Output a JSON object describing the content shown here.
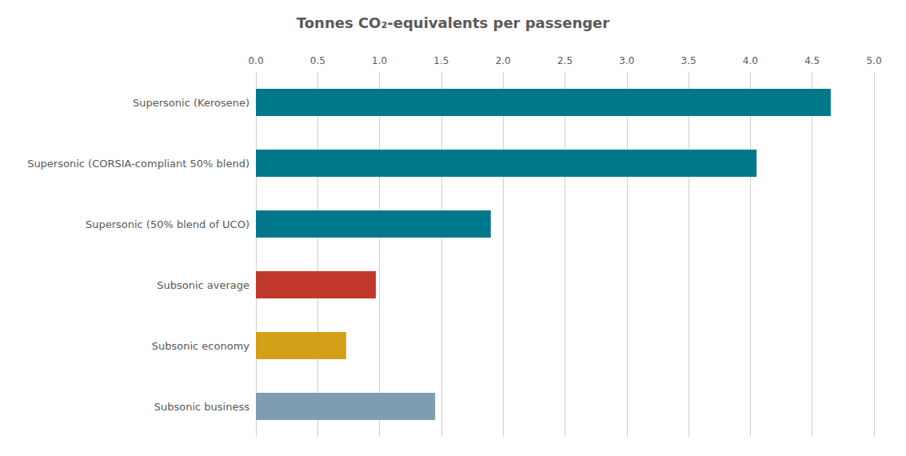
{
  "chart_data": {
    "type": "bar",
    "orientation": "horizontal",
    "title": "Tonnes CO₂-equivalents per passenger",
    "categories": [
      "Supersonic (Kerosene)",
      "Supersonic (CORSIA-compliant 50% blend)",
      "Supersonic (50% blend of UCO)",
      "Subsonic average",
      "Subsonic economy",
      "Subsonic business"
    ],
    "values": [
      4.65,
      4.05,
      1.9,
      0.97,
      0.73,
      1.45
    ],
    "colors": [
      "#00788a",
      "#00788a",
      "#00788a",
      "#c0392b",
      "#d4a017",
      "#7f9db0"
    ],
    "xlim": [
      0,
      5.0
    ],
    "xticks": [
      {
        "value": 0,
        "label": "0.0"
      },
      0.5,
      {
        "value": 1,
        "label": "1.0"
      },
      1.5,
      {
        "value": 2,
        "label": "2.0"
      },
      2.5,
      {
        "value": 3,
        "label": "3.0"
      },
      3.5,
      {
        "value": 4,
        "label": "4.0"
      },
      4.5,
      {
        "value": 5,
        "label": "5.0"
      }
    ],
    "grid": true
  }
}
